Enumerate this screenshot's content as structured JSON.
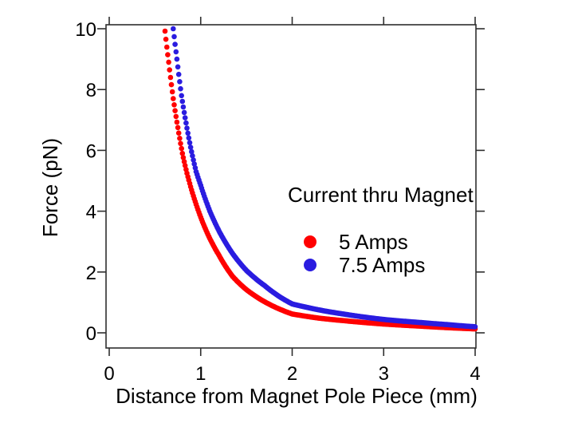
{
  "chart_data": {
    "type": "scatter",
    "title": "",
    "xlabel": "Distance from Magnet Pole Piece (mm)",
    "ylabel": "Force (pN)",
    "xlim": [
      0,
      4
    ],
    "ylim": [
      0,
      10
    ],
    "xticks": [
      "0",
      "1",
      "2",
      "3",
      "4"
    ],
    "yticks": [
      "0",
      "2",
      "4",
      "6",
      "8",
      "10"
    ],
    "grid": false,
    "legend": {
      "title": "Current thru Magnet",
      "position": "inside-right"
    },
    "series": [
      {
        "name": "5 Amps",
        "color": "#ff0000",
        "points": [
          [
            0.61,
            9.92
          ],
          [
            0.65,
            8.9
          ],
          [
            0.7,
            7.7
          ],
          [
            0.75,
            6.75
          ],
          [
            0.8,
            5.9
          ],
          [
            0.85,
            5.25
          ],
          [
            0.9,
            4.7
          ],
          [
            1.0,
            3.8
          ],
          [
            1.1,
            3.1
          ],
          [
            1.2,
            2.55
          ],
          [
            1.35,
            1.85
          ],
          [
            1.5,
            1.42
          ],
          [
            1.7,
            1.02
          ],
          [
            2.0,
            0.62
          ],
          [
            2.3,
            0.48
          ],
          [
            2.6,
            0.39
          ],
          [
            3.0,
            0.29
          ],
          [
            3.4,
            0.22
          ],
          [
            3.7,
            0.17
          ],
          [
            4.0,
            0.13
          ]
        ]
      },
      {
        "name": "7.5 Amps",
        "color": "#2a1ce0",
        "points": [
          [
            0.7,
            10.0
          ],
          [
            0.74,
            9.0
          ],
          [
            0.79,
            7.8
          ],
          [
            0.84,
            6.9
          ],
          [
            0.89,
            6.1
          ],
          [
            0.95,
            5.3
          ],
          [
            1.0,
            4.85
          ],
          [
            1.1,
            4.0
          ],
          [
            1.2,
            3.35
          ],
          [
            1.35,
            2.6
          ],
          [
            1.5,
            2.05
          ],
          [
            1.7,
            1.55
          ],
          [
            2.0,
            0.95
          ],
          [
            2.3,
            0.75
          ],
          [
            2.6,
            0.6
          ],
          [
            3.0,
            0.44
          ],
          [
            3.4,
            0.34
          ],
          [
            3.7,
            0.27
          ],
          [
            4.0,
            0.2
          ]
        ]
      }
    ]
  }
}
